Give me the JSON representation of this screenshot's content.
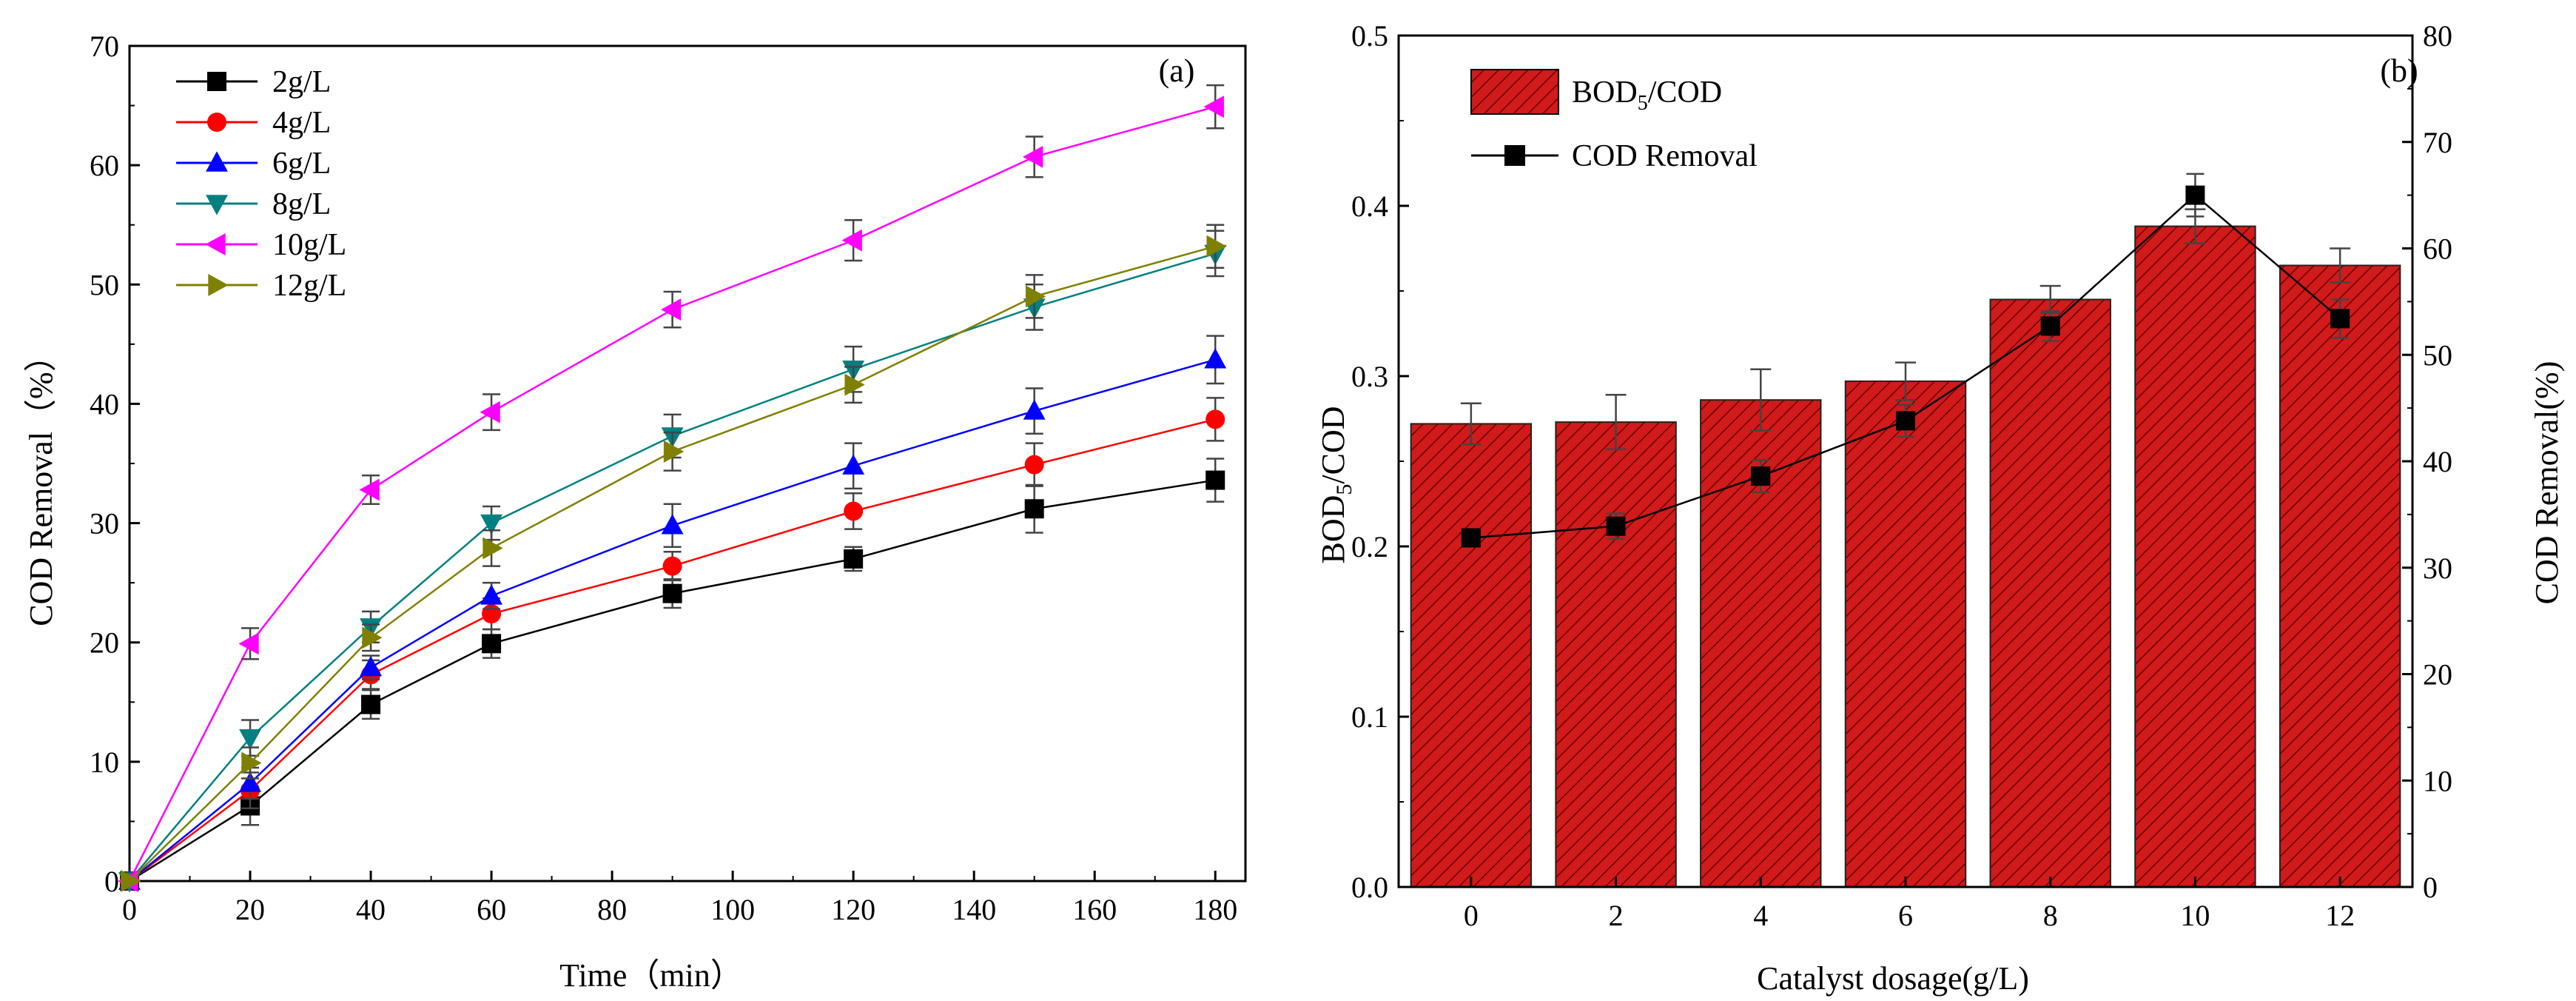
{
  "chart_data": [
    {
      "type": "line",
      "panel_label": "(a)",
      "xlabel": "Time（min）",
      "ylabel": "COD Removal（%）",
      "xlim": [
        0,
        185
      ],
      "ylim": [
        0,
        70
      ],
      "xticks": [
        "0",
        "20",
        "40",
        "60",
        "80",
        "100",
        "120",
        "140",
        "160",
        "180"
      ],
      "yticks": [
        "0",
        "10",
        "20",
        "30",
        "40",
        "50",
        "60",
        "70"
      ],
      "x": [
        0,
        20,
        40,
        60,
        90,
        120,
        150,
        180
      ],
      "legend_position": "top-left",
      "series": [
        {
          "name": "2g/L",
          "color": "#000000",
          "marker": "square",
          "values": [
            0,
            6.3,
            14.8,
            19.9,
            24.1,
            27.0,
            31.2,
            33.6
          ],
          "errors": [
            0,
            1.6,
            1.2,
            1.2,
            1.2,
            1.0,
            2.0,
            1.8
          ]
        },
        {
          "name": "4g/L",
          "color": "#ff0000",
          "marker": "circle",
          "values": [
            0,
            7.6,
            17.3,
            22.4,
            26.4,
            31.0,
            34.9,
            38.7
          ],
          "errors": [
            0,
            1.5,
            1.2,
            1.3,
            1.2,
            1.5,
            1.8,
            1.8
          ]
        },
        {
          "name": "6g/L",
          "color": "#0000ff",
          "marker": "triangle-up",
          "values": [
            0,
            8.2,
            17.9,
            23.9,
            29.8,
            34.8,
            39.4,
            43.7
          ],
          "errors": [
            0,
            1.3,
            1.0,
            1.1,
            1.8,
            1.9,
            1.9,
            2.0
          ]
        },
        {
          "name": "8g/L",
          "color": "#008080",
          "marker": "triangle-down",
          "values": [
            0,
            12.0,
            21.3,
            30.0,
            37.3,
            42.9,
            48.1,
            52.6
          ],
          "errors": [
            0,
            1.5,
            1.3,
            1.4,
            1.8,
            1.9,
            1.9,
            1.9
          ]
        },
        {
          "name": "10g/L",
          "color": "#ff00ff",
          "marker": "triangle-left",
          "values": [
            0,
            19.9,
            32.8,
            39.3,
            47.9,
            53.7,
            60.7,
            64.9
          ],
          "errors": [
            0,
            1.3,
            1.2,
            1.5,
            1.5,
            1.7,
            1.7,
            1.8
          ]
        },
        {
          "name": "12g/L",
          "color": "#808000",
          "marker": "triangle-right",
          "values": [
            0,
            9.9,
            20.4,
            27.9,
            36.0,
            41.6,
            49.0,
            53.2
          ],
          "errors": [
            0,
            1.3,
            1.1,
            1.5,
            1.6,
            1.5,
            1.8,
            1.8
          ]
        }
      ]
    },
    {
      "type": "bar",
      "panel_label": "(b)",
      "xlabel": "Catalyst dosage(g/L)",
      "ylabel_main": "BOD",
      "ylabel_sub": "5",
      "ylabel_rest": "/COD",
      "y2label": "COD Removal(%)",
      "categories": [
        "0",
        "2",
        "4",
        "6",
        "8",
        "10",
        "12"
      ],
      "ylim": [
        0,
        0.5
      ],
      "y2lim": [
        0,
        80
      ],
      "yticks": [
        "0.0",
        "0.1",
        "0.2",
        "0.3",
        "0.4",
        "0.5"
      ],
      "y2ticks": [
        "0",
        "10",
        "20",
        "30",
        "40",
        "50",
        "60",
        "70",
        "80"
      ],
      "legend_position": "top-left",
      "bar_series": {
        "name_main": "BOD",
        "name_sub": "5",
        "name_rest": "/COD",
        "color": "#d11a1a",
        "values": [
          0.272,
          0.273,
          0.286,
          0.297,
          0.345,
          0.388,
          0.365
        ],
        "errors": [
          0.012,
          0.016,
          0.018,
          0.011,
          0.008,
          0.01,
          0.01
        ]
      },
      "line_series": {
        "name": "COD Removal",
        "color": "#000000",
        "marker": "square",
        "values": [
          32.8,
          33.9,
          38.6,
          43.8,
          52.7,
          65.0,
          53.4
        ],
        "errors": [
          0.8,
          1.2,
          1.5,
          1.5,
          1.4,
          2.0,
          1.8
        ]
      }
    }
  ]
}
